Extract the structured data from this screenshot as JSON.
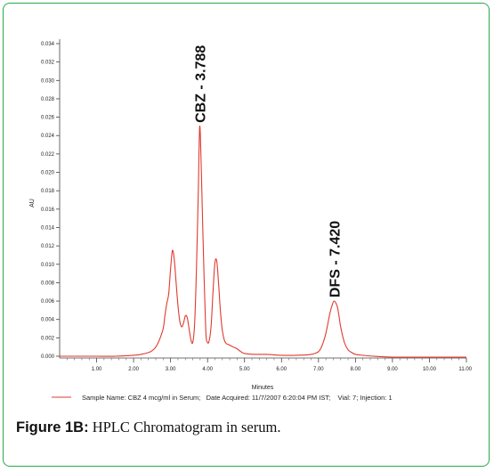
{
  "chart_data": {
    "type": "line",
    "xlabel": "Minutes",
    "ylabel": "AU",
    "xlim": [
      0.0,
      11.0
    ],
    "ylim": [
      -0.001,
      0.035
    ],
    "x_ticks": [
      1.0,
      2.0,
      3.0,
      4.0,
      5.0,
      6.0,
      7.0,
      8.0,
      9.0,
      10.0,
      11.0
    ],
    "x_tick_labels": [
      "1.00",
      "2.00",
      "3.00",
      "4.00",
      "5.00",
      "6.00",
      "7.00",
      "8.00",
      "9.00",
      "10.00",
      "11.00"
    ],
    "y_ticks": [
      0.0,
      0.002,
      0.004,
      0.006,
      0.008,
      0.01,
      0.012,
      0.014,
      0.016,
      0.018,
      0.02,
      0.022,
      0.024,
      0.026,
      0.028,
      0.03,
      0.032,
      0.034
    ],
    "y_tick_labels": [
      "0.000",
      "0.002",
      "0.004",
      "0.006",
      "0.008",
      "0.010",
      "0.012",
      "0.014",
      "0.016",
      "0.018",
      "0.020",
      "0.022",
      "0.024",
      "0.026",
      "0.028",
      "0.030",
      "0.032",
      "0.034"
    ],
    "series": [
      {
        "name": "Sample Name: CBZ 4 mcg/ml in Serum;   Date Acquired: 11/7/2007 6:20:04 PM IST;    Vial: 7; Injection: 1",
        "color": "#e03a2e",
        "x": [
          0.0,
          0.5,
          1.0,
          1.5,
          2.0,
          2.2,
          2.4,
          2.5,
          2.6,
          2.7,
          2.8,
          2.85,
          2.9,
          2.95,
          3.0,
          3.05,
          3.1,
          3.15,
          3.2,
          3.25,
          3.3,
          3.35,
          3.4,
          3.45,
          3.5,
          3.55,
          3.6,
          3.65,
          3.7,
          3.75,
          3.788,
          3.83,
          3.88,
          3.95,
          4.0,
          4.05,
          4.1,
          4.15,
          4.2,
          4.25,
          4.3,
          4.35,
          4.4,
          4.45,
          4.5,
          4.55,
          4.6,
          4.7,
          4.8,
          4.9,
          5.0,
          5.3,
          5.6,
          6.0,
          6.4,
          6.8,
          7.0,
          7.1,
          7.2,
          7.3,
          7.35,
          7.42,
          7.5,
          7.55,
          7.6,
          7.7,
          7.8,
          7.9,
          8.0,
          8.2,
          8.5,
          9.0,
          9.5,
          10.0,
          10.5,
          11.0
        ],
        "y": [
          0.0,
          0.0,
          0.0,
          0.0,
          0.0001,
          0.0002,
          0.0004,
          0.0006,
          0.001,
          0.0018,
          0.003,
          0.0045,
          0.0058,
          0.0068,
          0.0095,
          0.0115,
          0.0105,
          0.008,
          0.0055,
          0.0038,
          0.0032,
          0.0036,
          0.0044,
          0.0042,
          0.003,
          0.0018,
          0.0015,
          0.0035,
          0.0095,
          0.018,
          0.025,
          0.0205,
          0.0125,
          0.003,
          0.0015,
          0.0018,
          0.0035,
          0.0072,
          0.0102,
          0.0103,
          0.0078,
          0.0048,
          0.0028,
          0.0018,
          0.0014,
          0.0013,
          0.0012,
          0.001,
          0.0008,
          0.0005,
          0.0003,
          0.0002,
          0.0002,
          0.0001,
          0.0001,
          0.0002,
          0.0005,
          0.0012,
          0.0025,
          0.0045,
          0.0053,
          0.006,
          0.0055,
          0.0045,
          0.0032,
          0.0015,
          0.0007,
          0.0004,
          0.0002,
          0.0001,
          0.0,
          -0.0001,
          -0.0001,
          -0.0001,
          -0.0001,
          -0.0001
        ]
      }
    ],
    "annotations": [
      {
        "text": "CBZ - 3.788",
        "x": 3.788,
        "y": 0.025
      },
      {
        "text": "DFS - 7.420",
        "x": 7.42,
        "y": 0.006
      }
    ],
    "legend_position": "bottom",
    "grid": false
  },
  "caption": {
    "label": "Figure 1B:",
    "text": " HPLC Chromatogram in serum."
  }
}
